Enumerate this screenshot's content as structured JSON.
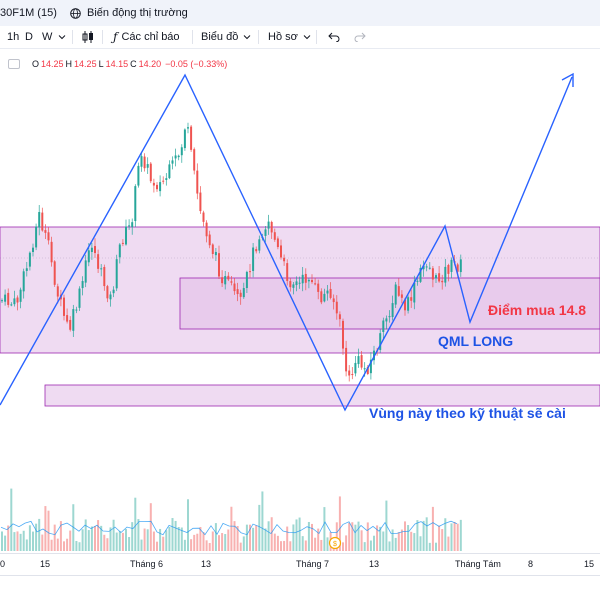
{
  "tabs": [
    {
      "label": "30F1M (15)"
    },
    {
      "label": "Biến động thị trường"
    }
  ],
  "toolbar": {
    "intervals": [
      "1h",
      "D",
      "W"
    ],
    "indicators_label": "Các chỉ báo",
    "chart_type_label": "Biểu đồ",
    "profile_label": "Hồ sơ"
  },
  "legend": {
    "o_label": "O",
    "o": "14.25",
    "h_label": "H",
    "h": "14.25",
    "l_label": "L",
    "l": "14.15",
    "c_label": "C",
    "c": "14.20",
    "change": "−0.05 (−0.33%)"
  },
  "annotations": {
    "buy_point": "Điểm mua 14.8",
    "pattern": "QML LONG",
    "zone_note": "Vùng này theo kỹ thuật sẽ cài"
  },
  "xaxis": {
    "labels": [
      "0",
      "15",
      "Tháng 6",
      "13",
      "Tháng 7",
      "13",
      "Tháng Tám",
      "8",
      "15"
    ]
  },
  "colors": {
    "up": "#26a69a",
    "down": "#ef5350",
    "zone_fill": "#e1bee7",
    "zone_border": "#9c27b0",
    "drawing": "#2962ff",
    "buy_text": "#f23645",
    "note_text": "#1e53e5"
  }
}
